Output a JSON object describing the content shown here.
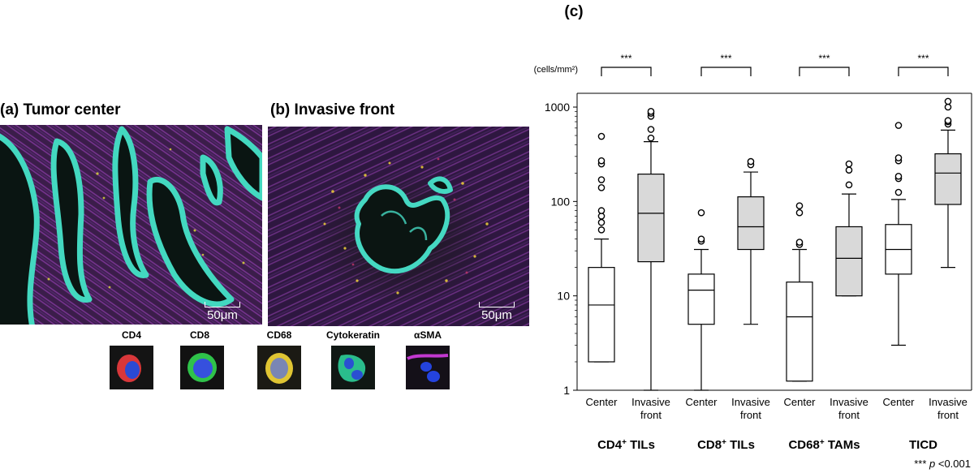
{
  "panels": {
    "a": {
      "title": "(a) Tumor center",
      "scale": "50μm"
    },
    "b": {
      "title": "(b) Invasive front",
      "scale": "50μm"
    },
    "c": {
      "title": "(c)"
    }
  },
  "markers": [
    {
      "label": "CD4",
      "colors": [
        "#e23a36",
        "#2c4fd8"
      ]
    },
    {
      "label": "CD8",
      "colors": [
        "#2fc44a",
        "#3850e0"
      ]
    },
    {
      "label": "CD68",
      "colors": [
        "#e1c734",
        "#7c88b8"
      ]
    },
    {
      "label": "Cytokeratin",
      "colors": [
        "#2bbf8e",
        "#2a50d4"
      ]
    },
    {
      "label": "αSMA",
      "colors": [
        "#c63ad3",
        "#2443e0"
      ]
    }
  ],
  "chart_data": {
    "type": "boxplot",
    "yunit": "(cells/mm²)",
    "yscale": "log",
    "ylim": [
      1,
      1600
    ],
    "yticks": [
      1,
      10,
      100,
      1000
    ],
    "categories": [
      "Center",
      "Invasive front",
      "Center",
      "Invasive front",
      "Center",
      "Invasive front",
      "Center",
      "Invasive front"
    ],
    "groups": [
      {
        "label": "CD4",
        "sup": "+",
        "rest": " TILs",
        "significance": "***",
        "boxes": [
          {
            "category": "Center",
            "fill": "#ffffff",
            "min": 2,
            "q1": 2,
            "median": 8,
            "q3": 20,
            "max": 40,
            "outliers": [
              50,
              60,
              70,
              80,
              140,
              170,
              250,
              270,
              490
            ]
          },
          {
            "category": "Invasive front",
            "fill": "#d9d9d9",
            "min": 1,
            "q1": 23,
            "median": 75,
            "q3": 195,
            "max": 430,
            "outliers": [
              470,
              580,
              800,
              860,
              900
            ]
          }
        ]
      },
      {
        "label": "CD8",
        "sup": "+",
        "rest": " TILs",
        "significance": "***",
        "boxes": [
          {
            "category": "Center",
            "fill": "#ffffff",
            "min": 1,
            "q1": 5,
            "median": 11.5,
            "q3": 17,
            "max": 31,
            "outliers": [
              38,
              40,
              76
            ]
          },
          {
            "category": "Invasive front",
            "fill": "#d9d9d9",
            "min": 5,
            "q1": 31,
            "median": 54,
            "q3": 112,
            "max": 205,
            "outliers": [
              245,
              265
            ]
          }
        ]
      },
      {
        "label": "CD68",
        "sup": "+",
        "rest": " TAMs",
        "significance": "***",
        "boxes": [
          {
            "category": "Center",
            "fill": "#ffffff",
            "min": 1.25,
            "q1": 1.25,
            "median": 6,
            "q3": 14,
            "max": 31,
            "outliers": [
              35,
              37,
              76,
              90
            ]
          },
          {
            "category": "Invasive front",
            "fill": "#d9d9d9",
            "min": 10,
            "q1": 10,
            "median": 25,
            "q3": 54,
            "max": 120,
            "outliers": [
              150,
              215,
              250
            ]
          }
        ]
      },
      {
        "label": "TICD",
        "sup": "",
        "rest": "",
        "significance": "***",
        "boxes": [
          {
            "category": "Center",
            "fill": "#ffffff",
            "min": 3,
            "q1": 17,
            "median": 31,
            "q3": 57,
            "max": 105,
            "outliers": [
              125,
              175,
              185,
              270,
              290,
              640
            ]
          },
          {
            "category": "Invasive front",
            "fill": "#d9d9d9",
            "min": 20,
            "q1": 93,
            "median": 200,
            "q3": 320,
            "max": 570,
            "outliers": [
              660,
              700,
              720,
              1000,
              1150
            ]
          }
        ]
      }
    ],
    "note": {
      "stars": "*** ",
      "p": "p",
      "rest": " <0.001"
    }
  }
}
